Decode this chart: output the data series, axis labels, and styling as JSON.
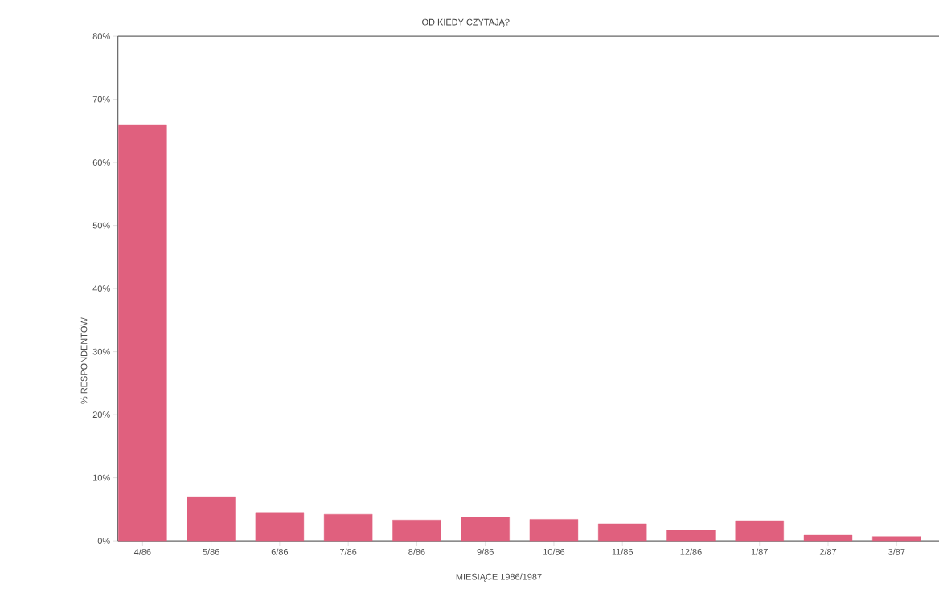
{
  "chart_data": {
    "type": "bar",
    "title": "OD KIEDY CZYTAJĄ?",
    "xlabel": "MIESIĄCE 1986/1987",
    "ylabel": "% RESPONDENTÓW",
    "categories": [
      "4/86",
      "5/86",
      "6/86",
      "7/86",
      "8/86",
      "9/86",
      "10/86",
      "11/86",
      "12/86",
      "1/87",
      "2/87",
      "3/87"
    ],
    "values": [
      66,
      7,
      4.5,
      4.2,
      3.3,
      3.7,
      3.4,
      2.7,
      1.7,
      3.2,
      0.9,
      0.7
    ],
    "color": "#e0607e",
    "ylim": [
      0,
      80
    ],
    "yticks": [
      {
        "value": 0,
        "label": "0%"
      },
      {
        "value": 10,
        "label": "10%"
      },
      {
        "value": 20,
        "label": "20%"
      },
      {
        "value": 30,
        "label": "30%"
      },
      {
        "value": 40,
        "label": "40%"
      },
      {
        "value": 50,
        "label": "50%"
      },
      {
        "value": 60,
        "label": "60%"
      },
      {
        "value": 70,
        "label": "70%"
      },
      {
        "value": 80,
        "label": "80%"
      }
    ],
    "grid": false
  }
}
